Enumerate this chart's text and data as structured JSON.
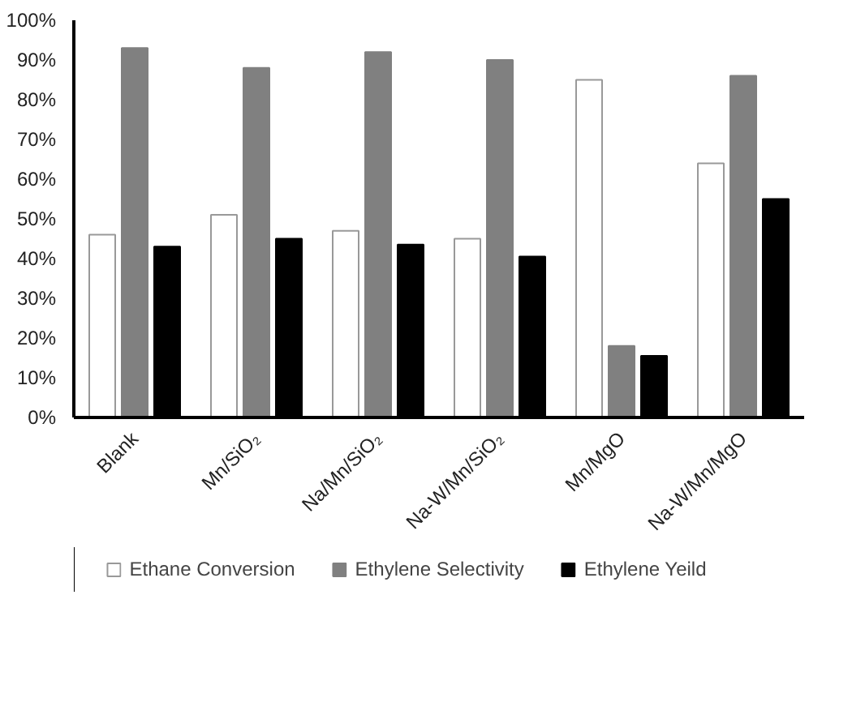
{
  "chart_data": {
    "type": "bar",
    "categories": [
      "Blank",
      "Mn/SiO₂",
      "Na/Mn/SiO₂",
      "Na-W/Mn/SiO₂",
      "Mn/MgO",
      "Na-W/Mn/MgO"
    ],
    "series": [
      {
        "name": "Ethane Conversion",
        "color": "#ffffff",
        "values": [
          46,
          51,
          47,
          45,
          85,
          64
        ]
      },
      {
        "name": "Ethylene Selectivity",
        "color": "#808080",
        "values": [
          93,
          88,
          92,
          90,
          18,
          86
        ]
      },
      {
        "name": "Ethylene Yeild",
        "color": "#000000",
        "values": [
          43,
          45,
          43.5,
          40.5,
          15.5,
          55
        ]
      }
    ],
    "ylim": [
      0,
      100
    ],
    "yticks": [
      {
        "value": 0,
        "label": "0%"
      },
      {
        "value": 10,
        "label": "10%"
      },
      {
        "value": 20,
        "label": "20%"
      },
      {
        "value": 30,
        "label": "30%"
      },
      {
        "value": 40,
        "label": "40%"
      },
      {
        "value": 50,
        "label": "50%"
      },
      {
        "value": 60,
        "label": "60%"
      },
      {
        "value": 70,
        "label": "70%"
      },
      {
        "value": 80,
        "label": "80%"
      },
      {
        "value": 90,
        "label": "90%"
      },
      {
        "value": 100,
        "label": "100%"
      }
    ],
    "grid": false,
    "legend": "bottom"
  }
}
